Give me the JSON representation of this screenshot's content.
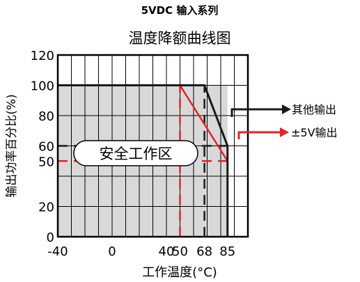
{
  "header": "5VDC 输入系列",
  "chart_data": {
    "type": "line",
    "title": "温度降额曲线图",
    "xlabel": "工作温度(°C)",
    "ylabel": "输出功率百分比(%)",
    "xlim": [
      -40,
      100
    ],
    "ylim": [
      0,
      120
    ],
    "x_ticks": [
      {
        "value": -40,
        "label": "-40"
      },
      {
        "value": 0,
        "label": "0"
      },
      {
        "value": 40,
        "label": "40"
      },
      {
        "value": 50,
        "label": "50"
      },
      {
        "value": 68,
        "label": "68"
      },
      {
        "value": 85,
        "label": "85"
      }
    ],
    "y_ticks": [
      0,
      20,
      50,
      60,
      80,
      100,
      120
    ],
    "grid": true,
    "zone_label": "安全工作区",
    "series": [
      {
        "name": "其他输出",
        "color": "#1a1a1a",
        "x": [
          -40,
          68,
          85,
          85
        ],
        "y": [
          100,
          100,
          60,
          0
        ]
      },
      {
        "name": "±5V输出",
        "color": "#e8202a",
        "x": [
          50,
          50,
          85
        ],
        "y": [
          0,
          100,
          50
        ]
      }
    ],
    "reference_lines": [
      {
        "color": "#e8202a",
        "points": [
          [
            -40,
            50
          ],
          [
            85,
            50
          ]
        ]
      },
      {
        "color": "#1a1a1a",
        "points": [
          [
            -40,
            60
          ],
          [
            85,
            60
          ]
        ]
      },
      {
        "color": "#1a1a1a",
        "points": [
          [
            68,
            0
          ],
          [
            68,
            100
          ]
        ]
      }
    ]
  }
}
